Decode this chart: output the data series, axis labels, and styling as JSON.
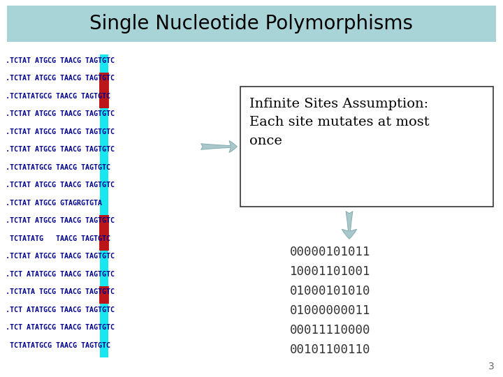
{
  "title": "Single Nucleotide Polymorphisms",
  "title_bg_color": "#a8d4d8",
  "title_fontsize": 20,
  "bg_color": "#ffffff",
  "dna_sequences": [
    ".TCTAT ATGCG TAACG TAGTGTC",
    ".TCTAT ATGCG TAACG TAGTGTC",
    ".TCTATATGCG TAACG TAGTGTC",
    ".TCTAT ATGCG TAACG TAGTGTC",
    ".TCTAT ATGCG TAACG TAGTGTC",
    ".TCTAT ATGCG TAACG TAGTGTC",
    ".TCTATATGCG TAACG TAGTGTC",
    ".TCTAT ATGCG TAACG TAGTGTC",
    ".TCTAT ATGCG GTAGRGTGTA",
    ".TCTAT ATGCG TAACG TAGTGTC",
    " TCTATATG   TAACG TAGTGTC",
    ".TCTAT ATGCG TAACG TAGTGTC",
    ".TCT ATATGCG TAACG TAGTGTC",
    ".TCTATA TGCG TAACG TAGTGTC",
    ".TCT ATATGCG TAACG TAGTGTC",
    ".TCT ATATGCG TAACG TAGTGTC",
    " TCTATATGCG TAACG TAGTGTC"
  ],
  "red_rows": [
    1,
    2,
    9,
    10,
    13
  ],
  "binary_rows": [
    "00000101011",
    "10001101001",
    "01000101010",
    "01000000011",
    "00011110000",
    "00101100110"
  ],
  "box_text_lines": [
    "Infinite Sites Assumption:",
    "Each site mutates at most",
    "once"
  ],
  "page_number": "3",
  "dna_color": "#00008b",
  "cyan_color": "#00e5ee",
  "red_color": "#cc0000",
  "arrow_color": "#a8c8cc",
  "box_edge_color": "#333333",
  "binary_color": "#333333"
}
